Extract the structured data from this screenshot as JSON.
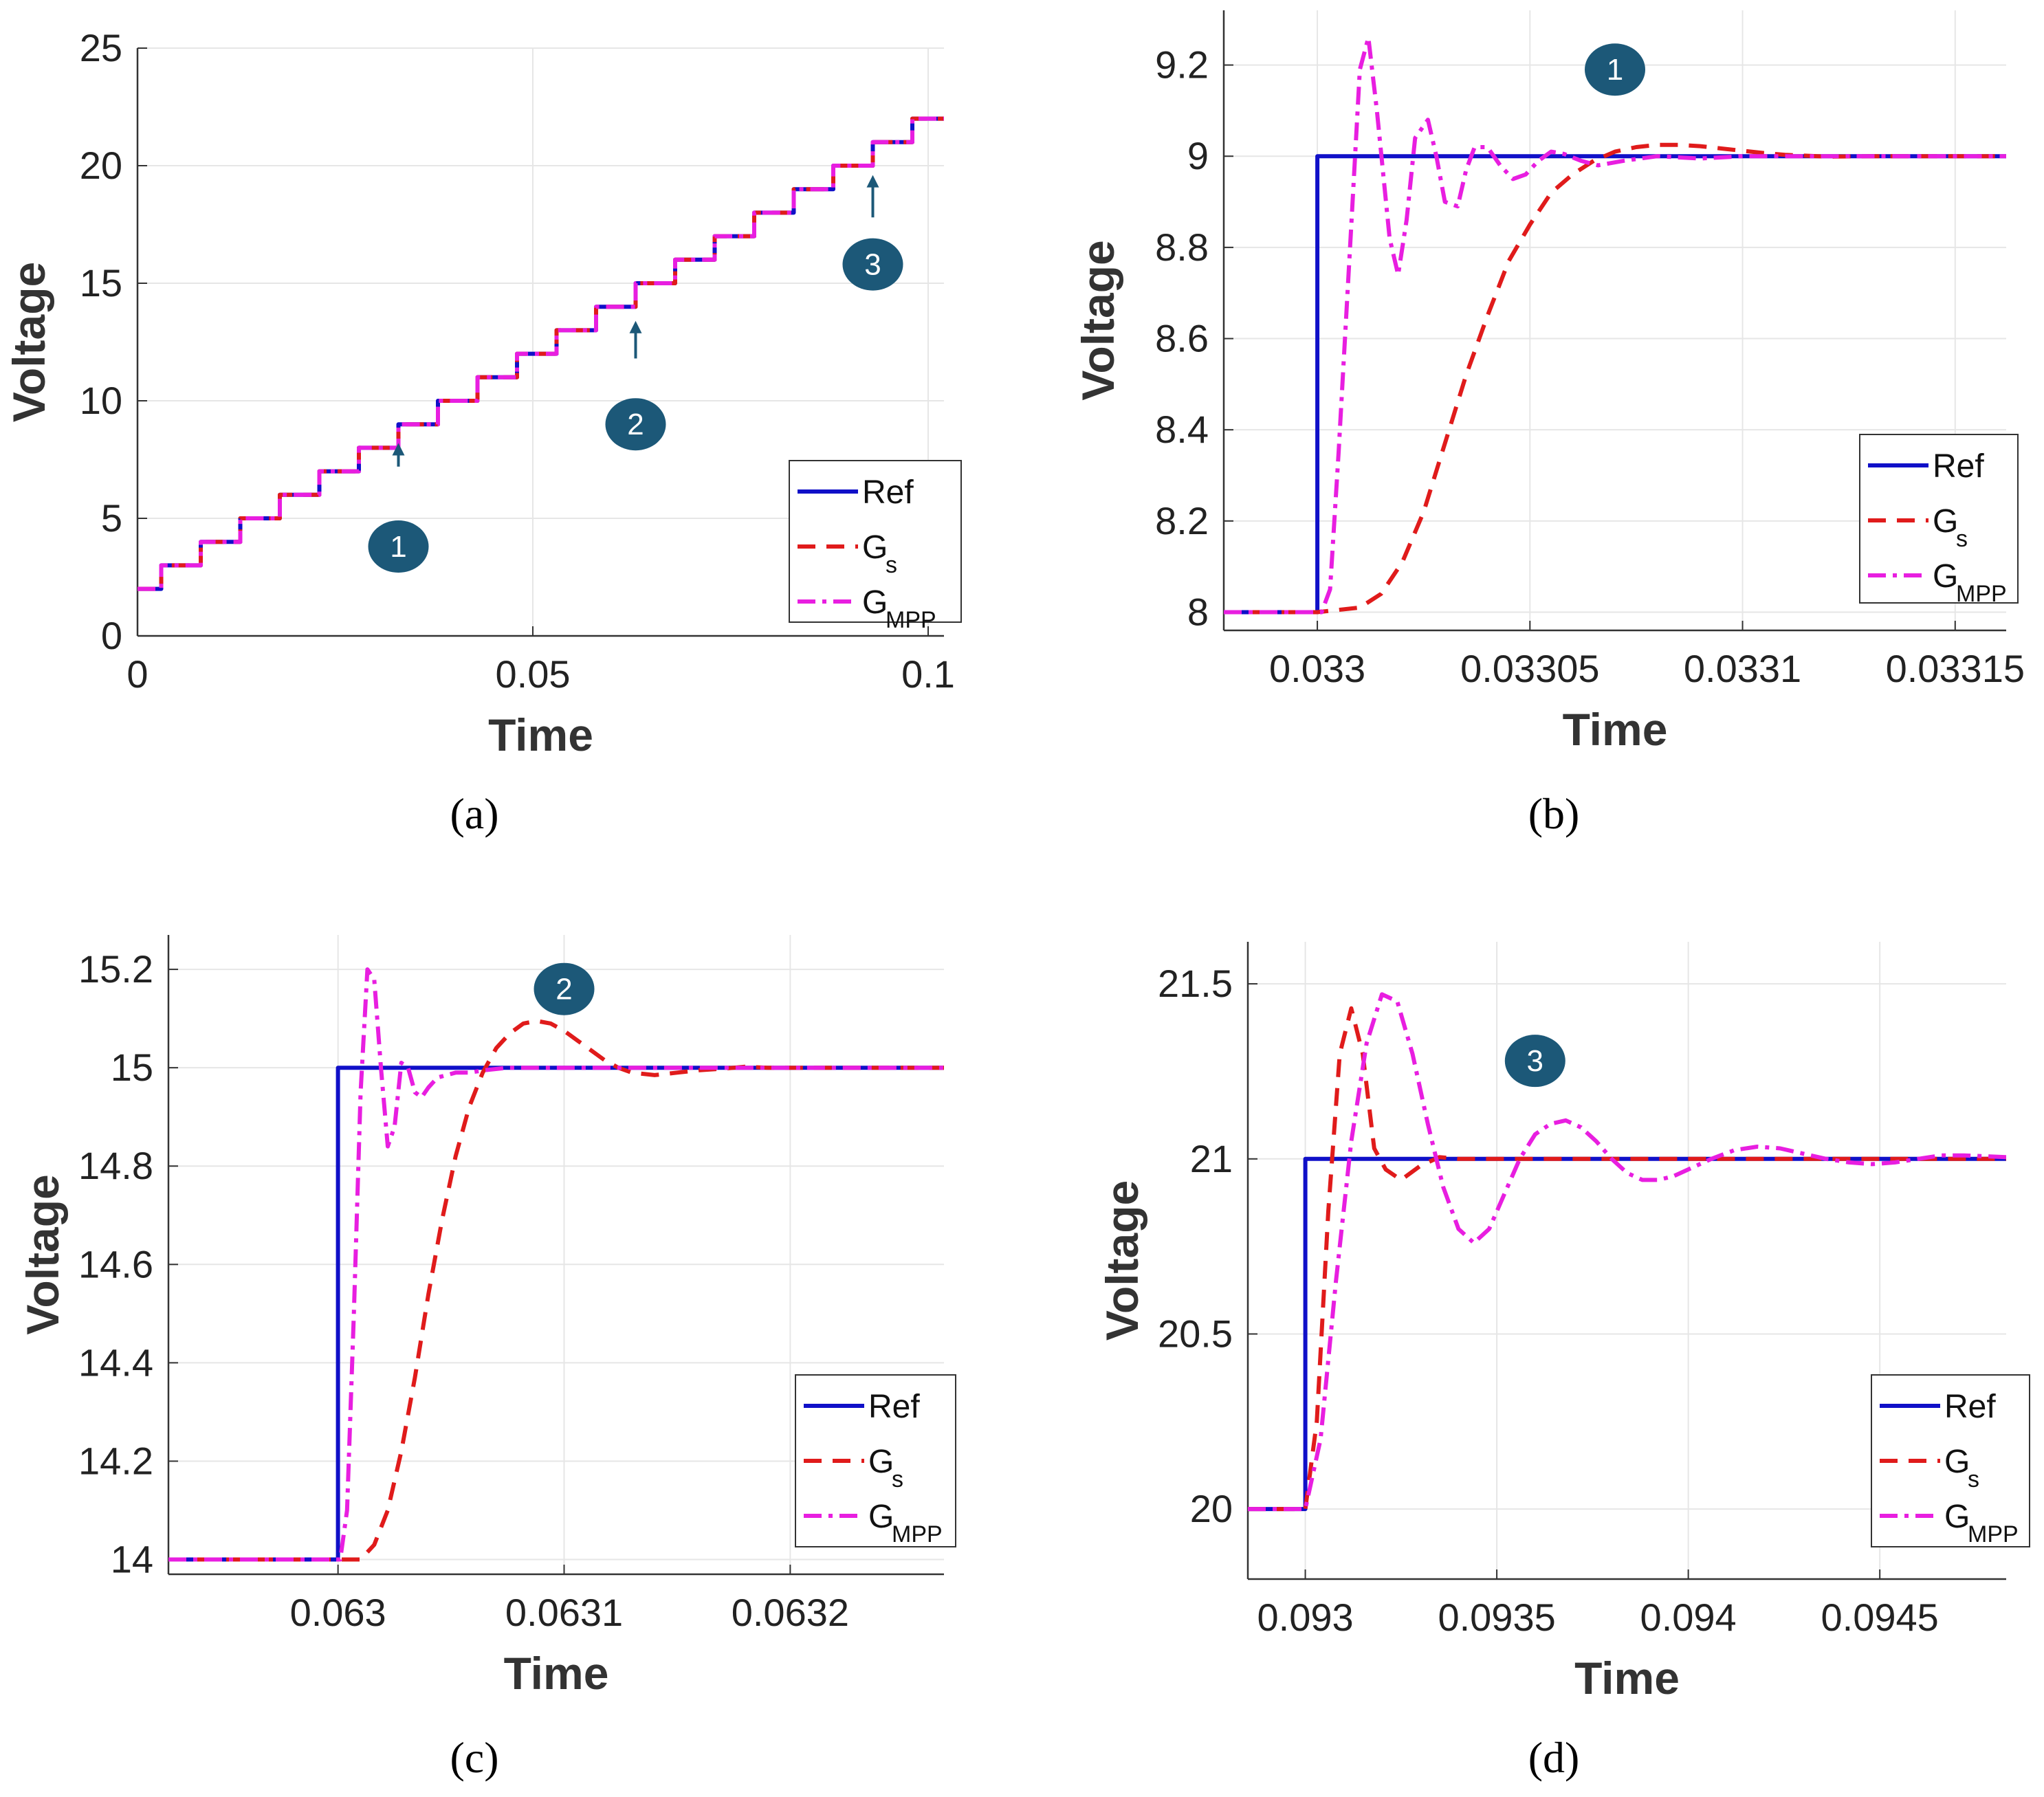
{
  "figure": {
    "colors": {
      "ref": "#1010c8",
      "gs": "#e01b1b",
      "gmpp": "#e81ee0",
      "marker": "#1c5878",
      "grid": "#e6e6e6",
      "axis": "#333333"
    }
  },
  "chart_data": [
    {
      "id": "a",
      "type": "line",
      "caption": "(a)",
      "xlabel": "Time",
      "ylabel": "Voltage",
      "xlim": [
        0,
        0.102
      ],
      "ylim": [
        0,
        25
      ],
      "xticks": [
        0,
        0.05,
        0.1
      ],
      "xtick_labels": [
        "0",
        "0.05",
        "0.1"
      ],
      "yticks": [
        0,
        5,
        10,
        15,
        20,
        25
      ],
      "ytick_labels": [
        "0",
        "5",
        "10",
        "15",
        "20",
        "25"
      ],
      "grid": true,
      "legend": {
        "position": "lower-right",
        "entries": [
          {
            "series": "ref",
            "label": "Ref",
            "sub": ""
          },
          {
            "series": "gs",
            "label": "G",
            "sub": "s"
          },
          {
            "series": "gmpp",
            "label": "G",
            "sub": "MPP"
          }
        ]
      },
      "series": [
        {
          "name": "Ref",
          "key": "ref",
          "style": "solid",
          "description": "staircase from 2 V to 22 V, +1 V every 0.005 s starting at t=0.003",
          "start_value": 2,
          "step": 1,
          "first_step_time": 0.003,
          "step_period": 0.005,
          "num_steps": 20,
          "end_time": 0.102
        },
        {
          "name": "G_s",
          "key": "gs",
          "style": "dashed",
          "description": "tracks staircase reference"
        },
        {
          "name": "G_MPP",
          "key": "gmpp",
          "style": "dashdot",
          "description": "tracks staircase reference"
        }
      ],
      "annotations": [
        {
          "label": "1",
          "arrow_x": 0.033,
          "arrow_y_top": 8.2,
          "arrow_y_bottom": 7.2,
          "marker_x": 0.033,
          "marker_y": 3.8
        },
        {
          "label": "2",
          "arrow_x": 0.063,
          "arrow_y_top": 13.4,
          "arrow_y_bottom": 11.8,
          "marker_x": 0.063,
          "marker_y": 9.0
        },
        {
          "label": "3",
          "arrow_x": 0.093,
          "arrow_y_top": 19.6,
          "arrow_y_bottom": 17.8,
          "marker_x": 0.093,
          "marker_y": 15.8
        }
      ]
    },
    {
      "id": "b",
      "type": "line",
      "caption": "(b)",
      "xlabel": "Time",
      "ylabel": "Voltage",
      "xlim": [
        0.032978,
        0.033162
      ],
      "ylim": [
        7.96,
        9.32
      ],
      "xticks": [
        0.033,
        0.03305,
        0.0331,
        0.03315
      ],
      "xtick_labels": [
        "0.033",
        "0.03305",
        "0.0331",
        "0.03315"
      ],
      "yticks": [
        8,
        8.2,
        8.4,
        8.6,
        8.8,
        9,
        9.2
      ],
      "ytick_labels": [
        "8",
        "8.2",
        "8.4",
        "8.6",
        "8.8",
        "9",
        "9.2"
      ],
      "grid": true,
      "legend": {
        "position": "lower-right",
        "entries": [
          {
            "series": "ref",
            "label": "Ref",
            "sub": ""
          },
          {
            "series": "gs",
            "label": "G",
            "sub": "s"
          },
          {
            "series": "gmpp",
            "label": "G",
            "sub": "MPP"
          }
        ]
      },
      "series": [
        {
          "name": "Ref",
          "key": "ref",
          "style": "solid",
          "x": [
            0.032978,
            0.033,
            0.033,
            0.033162
          ],
          "y": [
            8,
            8,
            9,
            9
          ]
        },
        {
          "name": "G_s",
          "key": "gs",
          "style": "dashed",
          "x": [
            0.032978,
            0.033,
            0.03301,
            0.033015,
            0.03302,
            0.033025,
            0.03303,
            0.033035,
            0.03304,
            0.033045,
            0.03305,
            0.033055,
            0.03306,
            0.033065,
            0.03307,
            0.033075,
            0.03308,
            0.033085,
            0.03309,
            0.033095,
            0.0331,
            0.033105,
            0.03311,
            0.03312,
            0.03313,
            0.033162
          ],
          "y": [
            8,
            8,
            8.01,
            8.04,
            8.11,
            8.22,
            8.37,
            8.52,
            8.65,
            8.77,
            8.85,
            8.92,
            8.96,
            8.99,
            9.01,
            9.02,
            9.025,
            9.025,
            9.022,
            9.017,
            9.012,
            9.007,
            9.003,
            8.999,
            9.0,
            9.0
          ]
        },
        {
          "name": "G_MPP",
          "key": "gmpp",
          "style": "dashdot",
          "x": [
            0.032978,
            0.033001,
            0.033003,
            0.033005,
            0.033008,
            0.03301,
            0.033012,
            0.033014,
            0.033017,
            0.033019,
            0.033021,
            0.033023,
            0.033026,
            0.033028,
            0.03303,
            0.033033,
            0.033035,
            0.033037,
            0.03304,
            0.033043,
            0.033046,
            0.033049,
            0.033052,
            0.033055,
            0.033058,
            0.033062,
            0.033066,
            0.033072,
            0.03308,
            0.03309,
            0.0331,
            0.033162
          ],
          "y": [
            8,
            8,
            8.05,
            8.35,
            8.85,
            9.19,
            9.26,
            9.1,
            8.82,
            8.74,
            8.86,
            9.04,
            9.08,
            9.0,
            8.9,
            8.89,
            8.97,
            9.02,
            9.02,
            8.98,
            8.95,
            8.96,
            8.99,
            9.01,
            9.005,
            8.99,
            8.98,
            8.99,
            9.0,
            8.995,
            9.0,
            9.0
          ]
        }
      ],
      "annotations": [
        {
          "label": "1",
          "marker_x": 0.03307,
          "marker_y": 9.19
        }
      ]
    },
    {
      "id": "c",
      "type": "line",
      "caption": "(c)",
      "xlabel": "Time",
      "ylabel": "Voltage",
      "xlim": [
        0.062925,
        0.063268
      ],
      "ylim": [
        13.97,
        15.27
      ],
      "xticks": [
        0.063,
        0.0631,
        0.0632
      ],
      "xtick_labels": [
        "0.063",
        "0.0631",
        "0.0632"
      ],
      "yticks": [
        14,
        14.2,
        14.4,
        14.6,
        14.8,
        15,
        15.2
      ],
      "ytick_labels": [
        "14",
        "14.2",
        "14.4",
        "14.6",
        "14.8",
        "15",
        "15.2"
      ],
      "grid": true,
      "legend": {
        "position": "lower-right",
        "entries": [
          {
            "series": "ref",
            "label": "Ref",
            "sub": ""
          },
          {
            "series": "gs",
            "label": "G",
            "sub": "s"
          },
          {
            "series": "gmpp",
            "label": "G",
            "sub": "MPP"
          }
        ]
      },
      "series": [
        {
          "name": "Ref",
          "key": "ref",
          "style": "solid",
          "x": [
            0.062925,
            0.063,
            0.063,
            0.063268
          ],
          "y": [
            14,
            14,
            15,
            15
          ]
        },
        {
          "name": "G_s",
          "key": "gs",
          "style": "dashed",
          "x": [
            0.062925,
            0.06301,
            0.063016,
            0.063022,
            0.063028,
            0.063034,
            0.06304,
            0.063046,
            0.063052,
            0.063058,
            0.063064,
            0.06307,
            0.063076,
            0.063082,
            0.063088,
            0.063094,
            0.0631,
            0.063106,
            0.063112,
            0.063118,
            0.063124,
            0.06313,
            0.06314,
            0.06315,
            0.06316,
            0.06317,
            0.06318,
            0.06319,
            0.063268
          ],
          "y": [
            14,
            14,
            14.03,
            14.1,
            14.22,
            14.37,
            14.54,
            14.69,
            14.82,
            14.92,
            14.99,
            15.04,
            15.07,
            15.09,
            15.095,
            15.09,
            15.075,
            15.055,
            15.035,
            15.015,
            15.0,
            14.99,
            14.985,
            14.99,
            14.995,
            14.998,
            15.002,
            15.0,
            15.0
          ]
        },
        {
          "name": "G_MPP",
          "key": "gmpp",
          "style": "dashdot",
          "x": [
            0.062925,
            0.063001,
            0.063004,
            0.063007,
            0.06301,
            0.063013,
            0.063016,
            0.063019,
            0.063022,
            0.063025,
            0.063028,
            0.063031,
            0.063034,
            0.063037,
            0.06304,
            0.063044,
            0.063048,
            0.063052,
            0.063058,
            0.063065,
            0.063075,
            0.063085,
            0.063268
          ],
          "y": [
            14,
            14,
            14.1,
            14.5,
            14.95,
            15.2,
            15.18,
            15.0,
            14.84,
            14.88,
            15.01,
            15.0,
            14.95,
            14.94,
            14.96,
            14.98,
            14.985,
            14.99,
            14.99,
            14.995,
            15.0,
            15.0,
            15.0
          ]
        }
      ],
      "annotations": [
        {
          "label": "2",
          "marker_x": 0.0631,
          "marker_y": 15.16
        }
      ]
    },
    {
      "id": "d",
      "type": "line",
      "caption": "(d)",
      "xlabel": "Time",
      "ylabel": "Voltage",
      "xlim": [
        0.09285,
        0.09483
      ],
      "ylim": [
        19.8,
        21.62
      ],
      "xticks": [
        0.093,
        0.0935,
        0.094,
        0.0945
      ],
      "xtick_labels": [
        "0.093",
        "0.0935",
        "0.094",
        "0.0945"
      ],
      "yticks": [
        20,
        20.5,
        21,
        21.5
      ],
      "ytick_labels": [
        "20",
        "20.5",
        "21",
        "21.5"
      ],
      "grid": true,
      "legend": {
        "position": "lower-right",
        "entries": [
          {
            "series": "ref",
            "label": "Ref",
            "sub": ""
          },
          {
            "series": "gs",
            "label": "G",
            "sub": "s"
          },
          {
            "series": "gmpp",
            "label": "G",
            "sub": "MPP"
          }
        ]
      },
      "series": [
        {
          "name": "Ref",
          "key": "ref",
          "style": "solid",
          "x": [
            0.09285,
            0.093,
            0.093,
            0.09483
          ],
          "y": [
            20,
            20,
            21,
            21
          ]
        },
        {
          "name": "G_s",
          "key": "gs",
          "style": "dashed",
          "x": [
            0.09285,
            0.093,
            0.09303,
            0.09306,
            0.09309,
            0.09312,
            0.09315,
            0.09318,
            0.09321,
            0.09325,
            0.0933,
            0.09335,
            0.0934,
            0.09483
          ],
          "y": [
            20,
            20,
            20.25,
            20.85,
            21.3,
            21.43,
            21.3,
            21.03,
            20.97,
            20.94,
            20.98,
            21.005,
            21.0,
            21.0
          ]
        },
        {
          "name": "G_MPP",
          "key": "gmpp",
          "style": "dashdot",
          "x": [
            0.09285,
            0.093,
            0.09304,
            0.09308,
            0.09312,
            0.09316,
            0.0932,
            0.09324,
            0.09328,
            0.09332,
            0.09336,
            0.0934,
            0.09344,
            0.09348,
            0.09352,
            0.09356,
            0.0936,
            0.09364,
            0.09368,
            0.09372,
            0.09376,
            0.0938,
            0.09384,
            0.09388,
            0.09392,
            0.09396,
            0.094,
            0.09406,
            0.09412,
            0.09418,
            0.09424,
            0.0943,
            0.09436,
            0.09442,
            0.09448,
            0.09454,
            0.0946,
            0.09466,
            0.09472,
            0.09483
          ],
          "y": [
            20,
            20,
            20.2,
            20.65,
            21.05,
            21.33,
            21.47,
            21.45,
            21.3,
            21.1,
            20.92,
            20.8,
            20.76,
            20.8,
            20.9,
            21.0,
            21.07,
            21.1,
            21.11,
            21.09,
            21.05,
            21.0,
            20.96,
            20.94,
            20.94,
            20.95,
            20.97,
            21.0,
            21.025,
            21.035,
            21.03,
            21.015,
            21.0,
            20.99,
            20.985,
            20.99,
            21.0,
            21.01,
            21.01,
            21.005
          ]
        }
      ],
      "annotations": [
        {
          "label": "3",
          "marker_x": 0.0936,
          "marker_y": 21.28
        }
      ]
    }
  ]
}
